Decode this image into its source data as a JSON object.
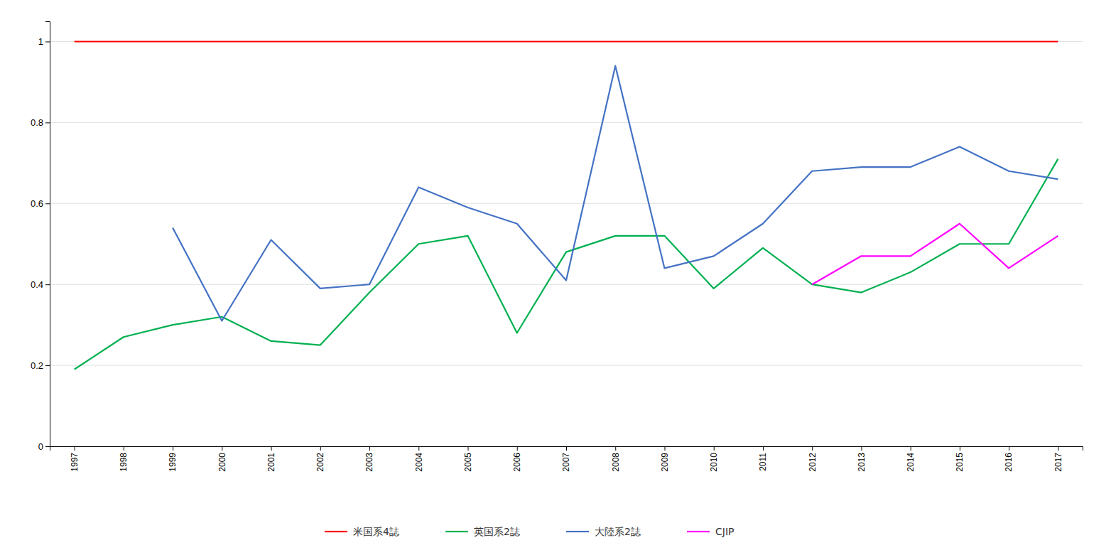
{
  "chart_data": {
    "type": "line",
    "x": [
      1997,
      1998,
      1999,
      2000,
      2001,
      2002,
      2003,
      2004,
      2005,
      2006,
      2007,
      2008,
      2009,
      2010,
      2011,
      2012,
      2013,
      2014,
      2015,
      2016,
      2017
    ],
    "series": [
      {
        "name": "米国系4誌",
        "color": "#FF0000",
        "values": [
          1.0,
          1.0,
          1.0,
          1.0,
          1.0,
          1.0,
          1.0,
          1.0,
          1.0,
          1.0,
          1.0,
          1.0,
          1.0,
          1.0,
          1.0,
          1.0,
          1.0,
          1.0,
          1.0,
          1.0,
          1.0
        ]
      },
      {
        "name": "英国系2誌",
        "color": "#00B050",
        "values": [
          0.19,
          0.27,
          0.3,
          0.32,
          0.26,
          0.25,
          0.38,
          0.5,
          0.52,
          0.28,
          0.48,
          0.52,
          0.52,
          0.39,
          0.49,
          0.4,
          0.38,
          0.43,
          0.5,
          0.5,
          0.71
        ]
      },
      {
        "name": "大陸系2誌",
        "color": "#4472C4",
        "values": [
          null,
          null,
          0.54,
          0.31,
          0.51,
          0.39,
          0.4,
          0.64,
          0.59,
          0.55,
          0.41,
          0.94,
          0.44,
          0.47,
          0.55,
          0.68,
          0.69,
          0.69,
          0.74,
          0.68,
          0.66
        ]
      },
      {
        "name": "CJIP",
        "color": "#FF00FF",
        "values": [
          null,
          null,
          null,
          null,
          null,
          null,
          null,
          null,
          null,
          null,
          null,
          null,
          null,
          null,
          null,
          0.4,
          0.47,
          0.47,
          0.55,
          0.44,
          0.52
        ]
      }
    ],
    "xlim": [
      1996.5,
      2017.5
    ],
    "xticks": [
      1997,
      1998,
      1999,
      2000,
      2001,
      2002,
      2003,
      2004,
      2005,
      2006,
      2007,
      2008,
      2009,
      2010,
      2011,
      2012,
      2013,
      2014,
      2015,
      2016,
      2017
    ],
    "ylim": [
      0,
      1.05
    ],
    "yticks": [
      0,
      0.2,
      0.4,
      0.6,
      0.8,
      1
    ],
    "grid": true,
    "legend": "bottom"
  }
}
